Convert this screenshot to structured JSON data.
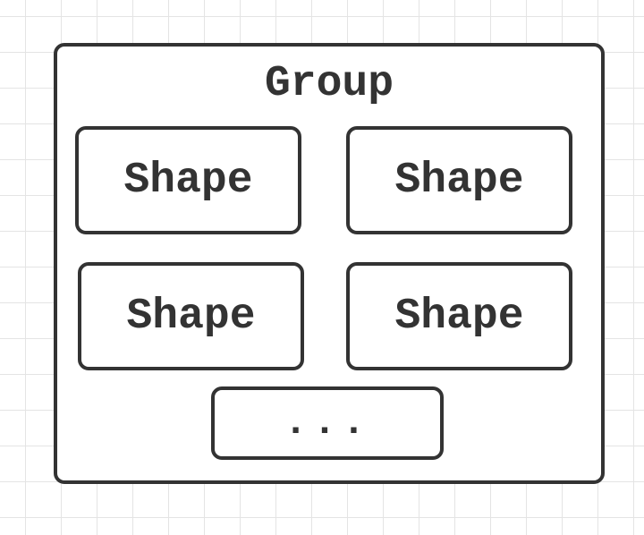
{
  "group": {
    "title": "Group",
    "shapes": [
      {
        "label": "Shape"
      },
      {
        "label": "Shape"
      },
      {
        "label": "Shape"
      },
      {
        "label": "Shape"
      }
    ],
    "more_label": "..."
  },
  "colors": {
    "stroke": "#333333",
    "fill": "#ffffff",
    "grid": "#e4e4e4"
  }
}
